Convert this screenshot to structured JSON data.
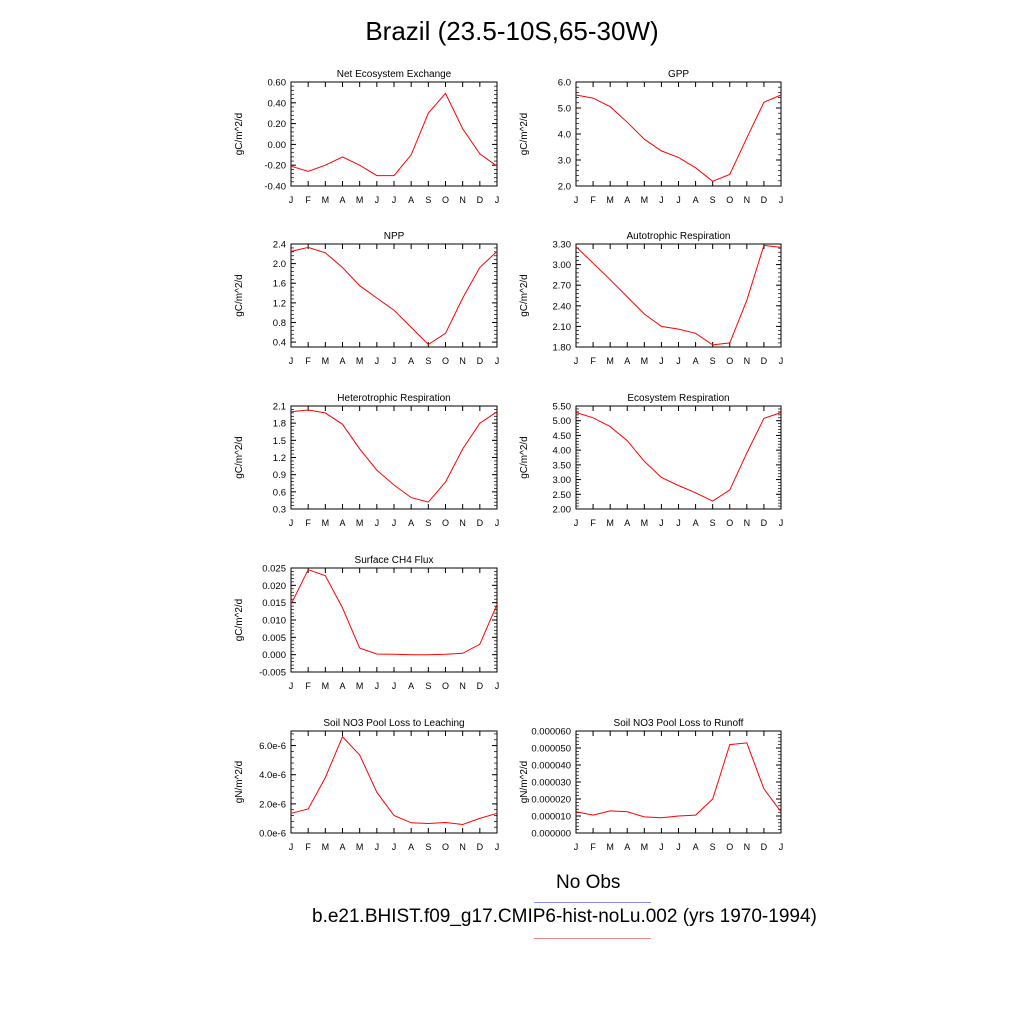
{
  "title": "Brazil (23.5-10S,65-30W)",
  "legend": {
    "obs_label": "No Obs",
    "obs_color": "#8a8af0",
    "model_label": "b.e21.BHIST.f09_g17.CMIP6-hist-noLu.002 (yrs 1970-1994)",
    "model_color": "#f08a8a"
  },
  "line_color": "#ff0000",
  "month_ticks": [
    "J",
    "F",
    "M",
    "A",
    "M",
    "J",
    "J",
    "A",
    "S",
    "O",
    "N",
    "D",
    "J"
  ],
  "chart_data": [
    {
      "type": "line",
      "title": "Net Ecosystem Exchange",
      "ylabel": "gC/m^2/d",
      "xlabel": "",
      "ylim": [
        -0.4,
        0.6
      ],
      "yticks": [
        "0.60",
        "0.40",
        "0.20",
        "0.00",
        "-0.20",
        "-0.40"
      ],
      "ytick_values": [
        0.6,
        0.4,
        0.2,
        0.0,
        -0.2,
        -0.4
      ],
      "x": [
        "J",
        "F",
        "M",
        "A",
        "M",
        "J",
        "J",
        "A",
        "S",
        "O",
        "N",
        "D",
        "J"
      ],
      "values": [
        -0.21,
        -0.26,
        -0.2,
        -0.12,
        -0.2,
        -0.3,
        -0.3,
        -0.1,
        0.3,
        0.49,
        0.15,
        -0.09,
        -0.21
      ]
    },
    {
      "type": "line",
      "title": "GPP",
      "ylabel": "gC/m^2/d",
      "xlabel": "",
      "ylim": [
        2.0,
        6.0
      ],
      "yticks": [
        "6.0",
        "5.0",
        "4.0",
        "3.0",
        "2.0"
      ],
      "ytick_values": [
        6.0,
        5.0,
        4.0,
        3.0,
        2.0
      ],
      "x": [
        "J",
        "F",
        "M",
        "A",
        "M",
        "J",
        "J",
        "A",
        "S",
        "O",
        "N",
        "D",
        "J"
      ],
      "values": [
        5.5,
        5.38,
        5.05,
        4.45,
        3.8,
        3.35,
        3.1,
        2.7,
        2.18,
        2.45,
        3.85,
        5.22,
        5.5
      ]
    },
    {
      "type": "line",
      "title": "NPP",
      "ylabel": "gC/m^2/d",
      "xlabel": "",
      "ylim": [
        0.3,
        2.4
      ],
      "yticks": [
        "2.4",
        "2.0",
        "1.6",
        "1.2",
        "0.8",
        "0.4"
      ],
      "ytick_values": [
        2.4,
        2.0,
        1.6,
        1.2,
        0.8,
        0.4
      ],
      "x": [
        "J",
        "F",
        "M",
        "A",
        "M",
        "J",
        "J",
        "A",
        "S",
        "O",
        "N",
        "D",
        "J"
      ],
      "values": [
        2.25,
        2.33,
        2.22,
        1.92,
        1.55,
        1.3,
        1.05,
        0.7,
        0.35,
        0.58,
        1.3,
        1.92,
        2.25
      ]
    },
    {
      "type": "line",
      "title": "Autotrophic Respiration",
      "ylabel": "gC/m^2/d",
      "xlabel": "",
      "ylim": [
        1.8,
        3.3
      ],
      "yticks": [
        "3.30",
        "3.00",
        "2.70",
        "2.40",
        "2.10",
        "1.80"
      ],
      "ytick_values": [
        3.3,
        3.0,
        2.7,
        2.4,
        2.1,
        1.8
      ],
      "x": [
        "J",
        "F",
        "M",
        "A",
        "M",
        "J",
        "J",
        "A",
        "S",
        "O",
        "N",
        "D",
        "J"
      ],
      "values": [
        3.26,
        3.02,
        2.78,
        2.53,
        2.28,
        2.1,
        2.06,
        2.0,
        1.83,
        1.86,
        2.48,
        3.28,
        3.25
      ]
    },
    {
      "type": "line",
      "title": "Heterotrophic Respiration",
      "ylabel": "gC/m^2/d",
      "xlabel": "",
      "ylim": [
        0.3,
        2.1
      ],
      "yticks": [
        "2.1",
        "1.8",
        "1.5",
        "1.2",
        "0.9",
        "0.6",
        "0.3"
      ],
      "ytick_values": [
        2.1,
        1.8,
        1.5,
        1.2,
        0.9,
        0.6,
        0.3
      ],
      "x": [
        "J",
        "F",
        "M",
        "A",
        "M",
        "J",
        "J",
        "A",
        "S",
        "O",
        "N",
        "D",
        "J"
      ],
      "values": [
        2.0,
        2.03,
        1.98,
        1.78,
        1.35,
        0.98,
        0.72,
        0.5,
        0.42,
        0.77,
        1.35,
        1.8,
        2.0
      ]
    },
    {
      "type": "line",
      "title": "Ecosystem Respiration",
      "ylabel": "gC/m^2/d",
      "xlabel": "",
      "ylim": [
        2.0,
        5.5
      ],
      "yticks": [
        "5.50",
        "5.00",
        "4.50",
        "4.00",
        "3.50",
        "3.00",
        "2.50",
        "2.00"
      ],
      "ytick_values": [
        5.5,
        5.0,
        4.5,
        4.0,
        3.5,
        3.0,
        2.5,
        2.0
      ],
      "x": [
        "J",
        "F",
        "M",
        "A",
        "M",
        "J",
        "J",
        "A",
        "S",
        "O",
        "N",
        "D",
        "J"
      ],
      "values": [
        5.28,
        5.1,
        4.8,
        4.32,
        3.62,
        3.07,
        2.8,
        2.55,
        2.27,
        2.65,
        3.9,
        5.08,
        5.28
      ]
    },
    {
      "type": "line",
      "title": "Surface CH4 Flux",
      "ylabel": "gC/m^2/d",
      "xlabel": "",
      "ylim": [
        -0.005,
        0.025
      ],
      "yticks": [
        "0.025",
        "0.020",
        "0.015",
        "0.010",
        "0.005",
        "0.000",
        "-0.005"
      ],
      "ytick_values": [
        0.025,
        0.02,
        0.015,
        0.01,
        0.005,
        0.0,
        -0.005
      ],
      "x": [
        "J",
        "F",
        "M",
        "A",
        "M",
        "J",
        "J",
        "A",
        "S",
        "O",
        "N",
        "D",
        "J"
      ],
      "values": [
        0.0145,
        0.0245,
        0.0228,
        0.0135,
        0.0019,
        0.0002,
        0.0001,
        0.0,
        0.0,
        0.0001,
        0.0004,
        0.003,
        0.0145
      ]
    },
    {
      "type": "line",
      "title": "Soil NO3 Pool Loss to Leaching",
      "ylabel": "gN/m^2/d",
      "xlabel": "",
      "ylim": [
        0.0,
        7e-06
      ],
      "yticks": [
        "6.0e-6",
        "4.0e-6",
        "2.0e-6",
        "0.0e-6"
      ],
      "ytick_values": [
        6e-06,
        4e-06,
        2e-06,
        0.0
      ],
      "x": [
        "J",
        "F",
        "M",
        "A",
        "M",
        "J",
        "J",
        "A",
        "S",
        "O",
        "N",
        "D",
        "J"
      ],
      "values": [
        1.35e-06,
        1.65e-06,
        3.8e-06,
        6.6e-06,
        5.35e-06,
        2.8e-06,
        1.2e-06,
        7e-07,
        6.5e-07,
        7.2e-07,
        5.8e-07,
        1e-06,
        1.35e-06
      ]
    },
    {
      "type": "line",
      "title": "Soil NO3 Pool Loss to Runoff",
      "ylabel": "gN/m^2/d",
      "xlabel": "",
      "ylim": [
        0.0,
        6e-05
      ],
      "yticks": [
        "0.000060",
        "0.000050",
        "0.000040",
        "0.000030",
        "0.000020",
        "0.000010",
        "0.000000"
      ],
      "ytick_values": [
        6e-05,
        5e-05,
        4e-05,
        3e-05,
        2e-05,
        1e-05,
        0.0
      ],
      "x": [
        "J",
        "F",
        "M",
        "A",
        "M",
        "J",
        "J",
        "A",
        "S",
        "O",
        "N",
        "D",
        "J"
      ],
      "values": [
        1.25e-05,
        1.05e-05,
        1.3e-05,
        1.25e-05,
        9.5e-06,
        9e-06,
        1e-05,
        1.05e-05,
        2e-05,
        5.2e-05,
        5.3e-05,
        2.6e-05,
        1.25e-05
      ]
    }
  ]
}
